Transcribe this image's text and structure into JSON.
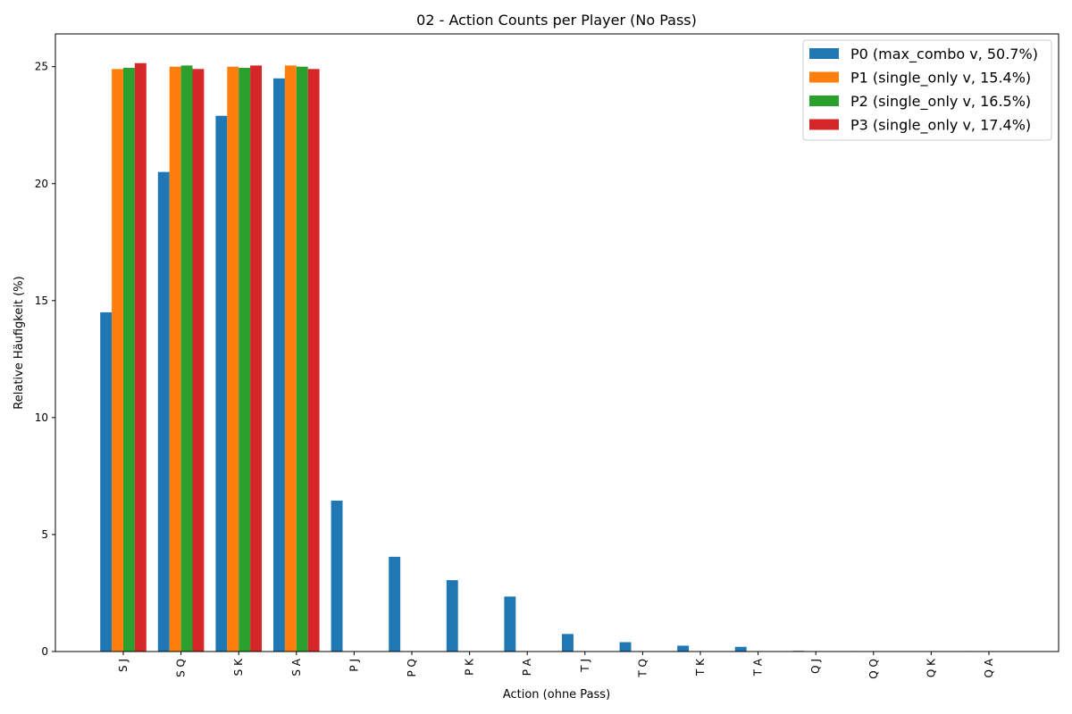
{
  "chart_data": {
    "type": "bar",
    "title": "02 - Action Counts per Player (No Pass)",
    "xlabel": "Action (ohne Pass)",
    "ylabel": "Relative Häufigkeit (%)",
    "ylim": [
      0,
      26.4
    ],
    "yticks": [
      0,
      5,
      10,
      15,
      20,
      25
    ],
    "ytick_labels": [
      "0",
      "5",
      "10",
      "15",
      "20",
      "25"
    ],
    "grid": false,
    "legend_position": "top-right",
    "categories": [
      "S J",
      "S Q",
      "S K",
      "S A",
      "P J",
      "P Q",
      "P K",
      "P A",
      "T J",
      "T Q",
      "T K",
      "T A",
      "Q J",
      "Q Q",
      "Q K",
      "Q A"
    ],
    "series": [
      {
        "name": "P0 (max_combo v, 50.7%)",
        "color": "#1f77b4",
        "values": [
          14.5,
          20.5,
          22.9,
          24.5,
          6.45,
          4.05,
          3.05,
          2.35,
          0.75,
          0.4,
          0.25,
          0.2,
          0.03,
          0.02,
          0.0,
          0.02
        ]
      },
      {
        "name": "P1 (single_only v, 15.4%)",
        "color": "#ff7f0e",
        "values": [
          24.9,
          25.0,
          25.0,
          25.05,
          0,
          0,
          0,
          0,
          0,
          0,
          0,
          0,
          0,
          0,
          0,
          0
        ]
      },
      {
        "name": "P2 (single_only v, 16.5%)",
        "color": "#2ca02c",
        "values": [
          24.95,
          25.05,
          24.95,
          25.0,
          0,
          0,
          0,
          0,
          0,
          0,
          0,
          0,
          0,
          0,
          0,
          0
        ]
      },
      {
        "name": "P3 (single_only v, 17.4%)",
        "color": "#d62728",
        "values": [
          25.15,
          24.9,
          25.05,
          24.9,
          0,
          0,
          0,
          0,
          0,
          0,
          0,
          0,
          0,
          0,
          0,
          0
        ]
      }
    ]
  }
}
